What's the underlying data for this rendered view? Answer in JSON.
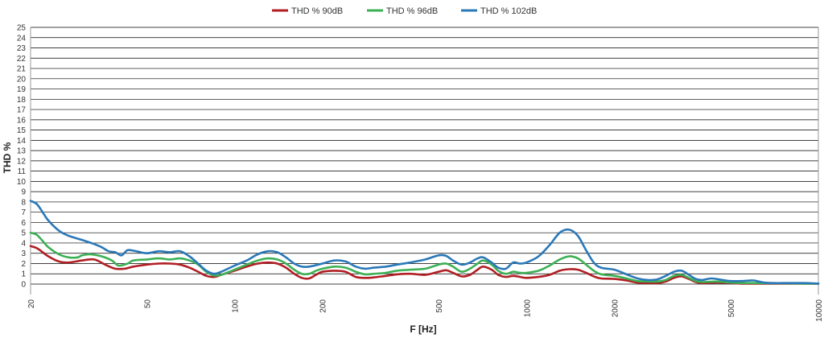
{
  "chart_data": {
    "type": "line",
    "xlabel": "F [Hz]",
    "ylabel": "THD %",
    "x_scale": "log",
    "xlim": [
      20,
      10000
    ],
    "ylim": [
      0,
      25
    ],
    "x_ticks": [
      20,
      50,
      100,
      200,
      500,
      1000,
      2000,
      5000,
      10000
    ],
    "y_ticks": [
      0,
      1,
      2,
      3,
      4,
      5,
      6,
      7,
      8,
      9,
      10,
      11,
      12,
      13,
      14,
      15,
      16,
      17,
      18,
      19,
      20,
      21,
      22,
      23,
      24,
      25
    ],
    "grid": "horizontal",
    "legend_position": "top",
    "series": [
      {
        "name": "THD % 90dB",
        "color": "#b01e23",
        "points": [
          [
            20,
            3.7
          ],
          [
            21,
            3.5
          ],
          [
            22,
            3.1
          ],
          [
            23,
            2.7
          ],
          [
            25,
            2.2
          ],
          [
            27,
            2.1
          ],
          [
            30,
            2.3
          ],
          [
            33,
            2.4
          ],
          [
            36,
            1.9
          ],
          [
            39,
            1.5
          ],
          [
            42,
            1.5
          ],
          [
            45,
            1.7
          ],
          [
            50,
            1.9
          ],
          [
            55,
            2.0
          ],
          [
            60,
            2.0
          ],
          [
            65,
            1.9
          ],
          [
            70,
            1.6
          ],
          [
            75,
            1.2
          ],
          [
            80,
            0.8
          ],
          [
            85,
            0.7
          ],
          [
            90,
            0.9
          ],
          [
            100,
            1.3
          ],
          [
            110,
            1.7
          ],
          [
            120,
            2.0
          ],
          [
            130,
            2.1
          ],
          [
            140,
            2.0
          ],
          [
            150,
            1.6
          ],
          [
            160,
            1.0
          ],
          [
            170,
            0.6
          ],
          [
            180,
            0.55
          ],
          [
            190,
            0.9
          ],
          [
            200,
            1.2
          ],
          [
            220,
            1.3
          ],
          [
            240,
            1.2
          ],
          [
            260,
            0.7
          ],
          [
            280,
            0.6
          ],
          [
            300,
            0.65
          ],
          [
            330,
            0.8
          ],
          [
            360,
            0.95
          ],
          [
            400,
            1.0
          ],
          [
            450,
            0.9
          ],
          [
            500,
            1.2
          ],
          [
            530,
            1.35
          ],
          [
            560,
            1.1
          ],
          [
            600,
            0.75
          ],
          [
            640,
            0.9
          ],
          [
            680,
            1.4
          ],
          [
            710,
            1.7
          ],
          [
            760,
            1.4
          ],
          [
            800,
            0.9
          ],
          [
            850,
            0.7
          ],
          [
            900,
            0.8
          ],
          [
            950,
            0.7
          ],
          [
            1000,
            0.6
          ],
          [
            1100,
            0.7
          ],
          [
            1200,
            0.9
          ],
          [
            1300,
            1.3
          ],
          [
            1400,
            1.45
          ],
          [
            1500,
            1.4
          ],
          [
            1600,
            1.1
          ],
          [
            1700,
            0.75
          ],
          [
            1800,
            0.55
          ],
          [
            2000,
            0.5
          ],
          [
            2200,
            0.35
          ],
          [
            2400,
            0.15
          ],
          [
            2600,
            0.1
          ],
          [
            2800,
            0.1
          ],
          [
            3000,
            0.25
          ],
          [
            3200,
            0.6
          ],
          [
            3400,
            0.75
          ],
          [
            3600,
            0.5
          ],
          [
            3800,
            0.2
          ],
          [
            4000,
            0.1
          ],
          [
            4500,
            0.15
          ],
          [
            5000,
            0.1
          ],
          [
            5500,
            0.05
          ],
          [
            6000,
            0.05
          ],
          [
            7000,
            0.05
          ],
          [
            8000,
            0.05
          ],
          [
            9000,
            0.05
          ],
          [
            10000,
            0.05
          ]
        ]
      },
      {
        "name": "THD % 96dB",
        "color": "#3cb054",
        "points": [
          [
            20,
            5.0
          ],
          [
            21,
            4.8
          ],
          [
            22,
            4.2
          ],
          [
            23,
            3.6
          ],
          [
            25,
            2.9
          ],
          [
            27,
            2.6
          ],
          [
            29,
            2.6
          ],
          [
            30,
            2.8
          ],
          [
            32,
            2.9
          ],
          [
            35,
            2.7
          ],
          [
            38,
            2.3
          ],
          [
            40,
            1.8
          ],
          [
            43,
            2.0
          ],
          [
            45,
            2.3
          ],
          [
            50,
            2.4
          ],
          [
            55,
            2.5
          ],
          [
            60,
            2.4
          ],
          [
            65,
            2.5
          ],
          [
            70,
            2.3
          ],
          [
            75,
            1.9
          ],
          [
            80,
            1.2
          ],
          [
            85,
            0.85
          ],
          [
            90,
            0.9
          ],
          [
            100,
            1.4
          ],
          [
            110,
            1.9
          ],
          [
            120,
            2.3
          ],
          [
            130,
            2.5
          ],
          [
            140,
            2.4
          ],
          [
            150,
            2.0
          ],
          [
            160,
            1.4
          ],
          [
            170,
            1.0
          ],
          [
            180,
            1.0
          ],
          [
            190,
            1.3
          ],
          [
            200,
            1.5
          ],
          [
            220,
            1.7
          ],
          [
            240,
            1.6
          ],
          [
            260,
            1.2
          ],
          [
            280,
            0.95
          ],
          [
            300,
            1.0
          ],
          [
            330,
            1.1
          ],
          [
            360,
            1.3
          ],
          [
            400,
            1.4
          ],
          [
            450,
            1.5
          ],
          [
            500,
            1.9
          ],
          [
            530,
            2.0
          ],
          [
            560,
            1.7
          ],
          [
            600,
            1.2
          ],
          [
            640,
            1.5
          ],
          [
            680,
            2.0
          ],
          [
            710,
            2.3
          ],
          [
            760,
            1.9
          ],
          [
            800,
            1.3
          ],
          [
            850,
            1.0
          ],
          [
            900,
            1.2
          ],
          [
            950,
            1.1
          ],
          [
            1000,
            1.1
          ],
          [
            1100,
            1.3
          ],
          [
            1200,
            1.8
          ],
          [
            1300,
            2.4
          ],
          [
            1400,
            2.7
          ],
          [
            1500,
            2.5
          ],
          [
            1600,
            1.9
          ],
          [
            1700,
            1.3
          ],
          [
            1800,
            0.95
          ],
          [
            2000,
            0.8
          ],
          [
            2200,
            0.55
          ],
          [
            2400,
            0.3
          ],
          [
            2600,
            0.25
          ],
          [
            2800,
            0.25
          ],
          [
            3000,
            0.4
          ],
          [
            3200,
            0.8
          ],
          [
            3400,
            0.9
          ],
          [
            3600,
            0.6
          ],
          [
            3800,
            0.3
          ],
          [
            4000,
            0.2
          ],
          [
            4500,
            0.25
          ],
          [
            5000,
            0.15
          ],
          [
            5500,
            0.1
          ],
          [
            6000,
            0.1
          ],
          [
            7000,
            0.08
          ],
          [
            8000,
            0.07
          ],
          [
            9000,
            0.05
          ],
          [
            10000,
            0.05
          ]
        ]
      },
      {
        "name": "THD % 102dB",
        "color": "#2a78b8",
        "points": [
          [
            20,
            8.1
          ],
          [
            21,
            7.8
          ],
          [
            22,
            7.0
          ],
          [
            23,
            6.2
          ],
          [
            25,
            5.2
          ],
          [
            27,
            4.7
          ],
          [
            30,
            4.3
          ],
          [
            33,
            3.9
          ],
          [
            35,
            3.6
          ],
          [
            37,
            3.2
          ],
          [
            39,
            3.1
          ],
          [
            41,
            2.8
          ],
          [
            43,
            3.3
          ],
          [
            46,
            3.2
          ],
          [
            50,
            3.0
          ],
          [
            55,
            3.2
          ],
          [
            60,
            3.1
          ],
          [
            65,
            3.2
          ],
          [
            70,
            2.7
          ],
          [
            75,
            2.0
          ],
          [
            80,
            1.3
          ],
          [
            85,
            1.0
          ],
          [
            90,
            1.2
          ],
          [
            100,
            1.8
          ],
          [
            110,
            2.3
          ],
          [
            120,
            2.9
          ],
          [
            130,
            3.2
          ],
          [
            140,
            3.1
          ],
          [
            150,
            2.6
          ],
          [
            160,
            2.0
          ],
          [
            170,
            1.7
          ],
          [
            180,
            1.7
          ],
          [
            200,
            2.0
          ],
          [
            220,
            2.3
          ],
          [
            240,
            2.2
          ],
          [
            260,
            1.7
          ],
          [
            280,
            1.5
          ],
          [
            300,
            1.6
          ],
          [
            330,
            1.7
          ],
          [
            360,
            1.9
          ],
          [
            400,
            2.1
          ],
          [
            450,
            2.4
          ],
          [
            500,
            2.8
          ],
          [
            530,
            2.75
          ],
          [
            560,
            2.3
          ],
          [
            600,
            1.9
          ],
          [
            640,
            2.1
          ],
          [
            680,
            2.5
          ],
          [
            710,
            2.6
          ],
          [
            760,
            2.1
          ],
          [
            800,
            1.6
          ],
          [
            850,
            1.5
          ],
          [
            900,
            2.1
          ],
          [
            950,
            2.0
          ],
          [
            1000,
            2.1
          ],
          [
            1100,
            2.7
          ],
          [
            1200,
            3.8
          ],
          [
            1300,
            5.0
          ],
          [
            1400,
            5.3
          ],
          [
            1500,
            4.7
          ],
          [
            1600,
            3.3
          ],
          [
            1700,
            2.1
          ],
          [
            1800,
            1.6
          ],
          [
            2000,
            1.4
          ],
          [
            2200,
            0.95
          ],
          [
            2400,
            0.55
          ],
          [
            2600,
            0.4
          ],
          [
            2800,
            0.45
          ],
          [
            3000,
            0.8
          ],
          [
            3200,
            1.2
          ],
          [
            3400,
            1.3
          ],
          [
            3600,
            0.9
          ],
          [
            3800,
            0.5
          ],
          [
            4000,
            0.4
          ],
          [
            4300,
            0.55
          ],
          [
            4700,
            0.4
          ],
          [
            5000,
            0.3
          ],
          [
            5500,
            0.3
          ],
          [
            6000,
            0.35
          ],
          [
            6500,
            0.15
          ],
          [
            7000,
            0.1
          ],
          [
            8000,
            0.1
          ],
          [
            9000,
            0.1
          ],
          [
            10000,
            0.05
          ]
        ]
      }
    ]
  }
}
